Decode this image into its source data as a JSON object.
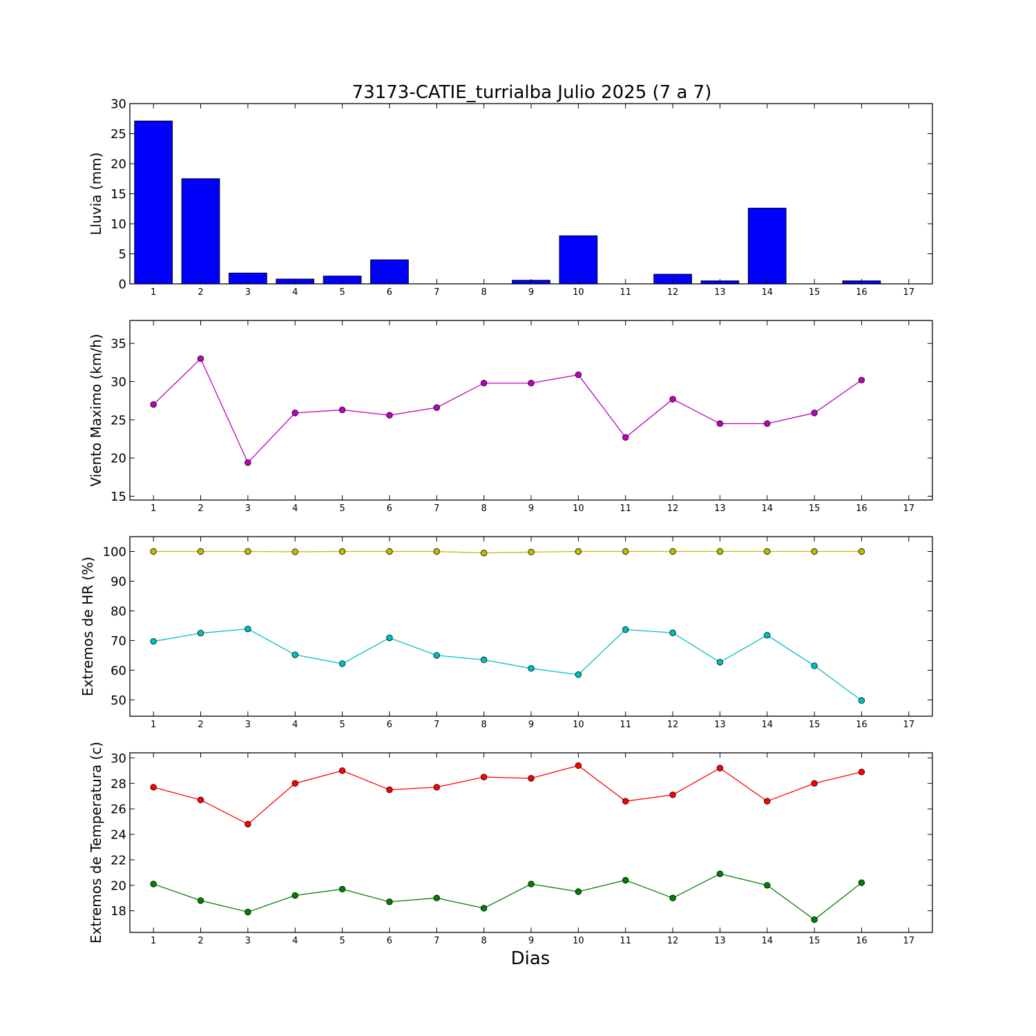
{
  "chart_data": {
    "title": "73173-CATIE_turrialba Julio 2025  (7 a 7)",
    "xlabel": "Dias",
    "x_ticks": [
      "1",
      "2",
      "3",
      "4",
      "5",
      "6",
      "7",
      "8",
      "9",
      "10",
      "11",
      "12",
      "13",
      "14",
      "15",
      "16",
      "17"
    ],
    "x": [
      1,
      2,
      3,
      4,
      5,
      6,
      7,
      8,
      9,
      10,
      11,
      12,
      13,
      14,
      15,
      16
    ],
    "xlim": [
      0.5,
      17.5
    ],
    "grid": false,
    "panels": [
      {
        "type": "bar",
        "ylabel": "Lluvia (mm)",
        "ylim": [
          0,
          30
        ],
        "yticks": [
          "0",
          "5",
          "10",
          "15",
          "20",
          "25",
          "30"
        ],
        "series": [
          {
            "color": "#0000ff",
            "values": [
              27.1,
              17.5,
              1.8,
              0.8,
              1.3,
              4.0,
              0.0,
              0.0,
              0.6,
              8.0,
              0.0,
              1.6,
              0.5,
              12.6,
              0.0,
              0.5
            ]
          }
        ]
      },
      {
        "type": "line",
        "ylabel": "Viento Maximo (km/h)",
        "ylim": [
          14.5,
          38
        ],
        "yticks": [
          "15",
          "20",
          "25",
          "30",
          "35"
        ],
        "series": [
          {
            "color": "#bf00bf",
            "values": [
              27.0,
              33.0,
              19.4,
              25.9,
              26.3,
              25.6,
              26.6,
              29.8,
              29.8,
              30.9,
              22.7,
              27.7,
              24.5,
              24.5,
              25.9,
              30.2
            ]
          }
        ]
      },
      {
        "type": "line",
        "ylabel": "Extremos de HR (%)",
        "ylim": [
          44.5,
          105
        ],
        "yticks": [
          "50",
          "60",
          "70",
          "80",
          "90",
          "100"
        ],
        "series": [
          {
            "color": "#bfbf00",
            "values": [
              100,
              100,
              100,
              99.9,
              100,
              100,
              100,
              99.5,
              99.8,
              100,
              100,
              100,
              100,
              100,
              100,
              100
            ]
          },
          {
            "color": "#00bfbf",
            "values": [
              69.7,
              72.5,
              73.9,
              65.2,
              62.2,
              70.9,
              65.0,
              63.5,
              60.6,
              58.5,
              73.7,
              72.6,
              62.7,
              71.8,
              61.5,
              49.8
            ]
          }
        ]
      },
      {
        "type": "line",
        "ylabel": "Extremos de Temperatura (c)",
        "ylim": [
          16.3,
          30.4
        ],
        "yticks": [
          "18",
          "20",
          "22",
          "24",
          "26",
          "28",
          "30"
        ],
        "series": [
          {
            "color": "#ff0000",
            "values": [
              27.7,
              26.7,
              24.8,
              28.0,
              29.0,
              27.5,
              27.7,
              28.5,
              28.4,
              29.4,
              26.6,
              27.1,
              29.2,
              26.6,
              28.0,
              28.9
            ]
          },
          {
            "color": "#008000",
            "values": [
              20.1,
              18.8,
              17.9,
              19.2,
              19.7,
              18.7,
              19.0,
              18.2,
              20.1,
              19.5,
              20.4,
              19.0,
              20.9,
              20.0,
              17.3,
              20.2
            ]
          }
        ]
      }
    ]
  }
}
